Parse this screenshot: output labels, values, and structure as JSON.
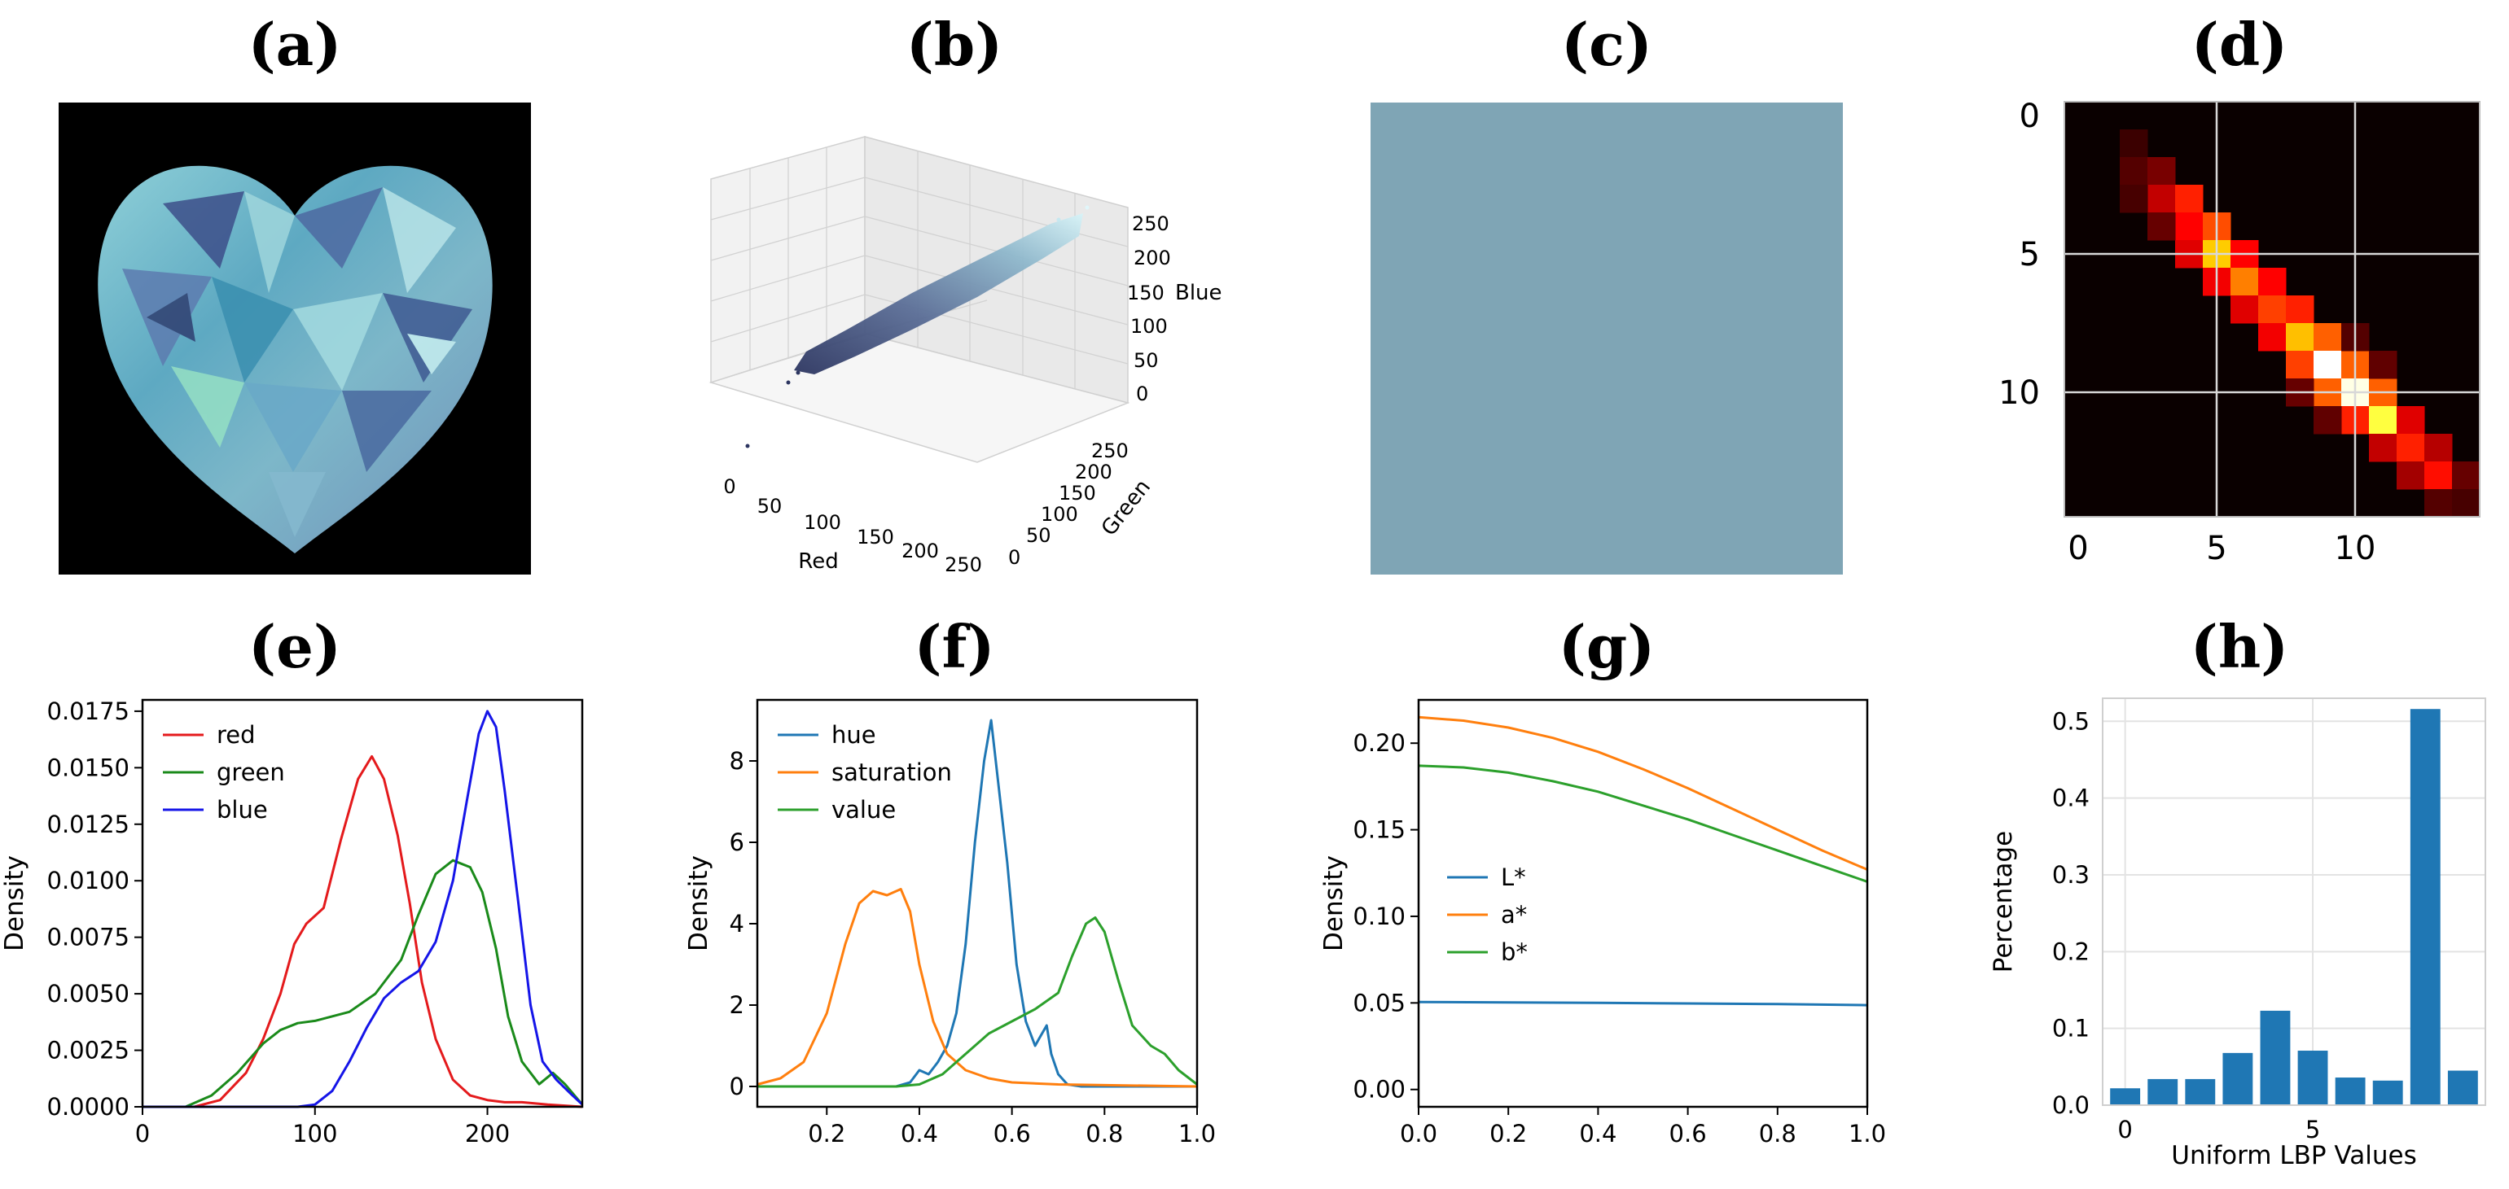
{
  "panel_labels": [
    "(a)",
    "(b)",
    "(c)",
    "(d)",
    "(e)",
    "(f)",
    "(g)",
    "(h)"
  ],
  "colors": {
    "red": "#e41a1c",
    "green": "#1a8a1a",
    "blue": "#1515e8",
    "mpl_blue": "#1f77b4",
    "mpl_orange": "#ff7f0e",
    "mpl_green": "#2ca02c",
    "dominant_color": "#7fa5b5",
    "image_bg": "#000000"
  },
  "chart_data": [
    {
      "id": "a",
      "type": "image",
      "description_hidden": true
    },
    {
      "id": "b",
      "type": "scatter3d",
      "xlabel": "Red",
      "ylabel": "Green",
      "zlabel": "Blue",
      "x_ticks": [
        "0",
        "50",
        "100",
        "150",
        "200",
        "250"
      ],
      "y_ticks": [
        "0",
        "50",
        "100",
        "150",
        "200",
        "250"
      ],
      "z_ticks": [
        "0",
        "50",
        "100",
        "150",
        "200",
        "250"
      ]
    },
    {
      "id": "c",
      "type": "swatch",
      "color": "#7fa5b5"
    },
    {
      "id": "d",
      "type": "heatmap",
      "x_ticks": [
        "0",
        "5",
        "10"
      ],
      "y_ticks": [
        "0",
        "5",
        "10"
      ],
      "size": 15,
      "diagonal": [
        {
          "r": 1,
          "c": 2,
          "v": 0.08
        },
        {
          "r": 2,
          "c": 2,
          "v": 0.12
        },
        {
          "r": 2,
          "c": 3,
          "v": 0.18
        },
        {
          "r": 3,
          "c": 3,
          "v": 0.3
        },
        {
          "r": 3,
          "c": 4,
          "v": 0.45
        },
        {
          "r": 4,
          "c": 4,
          "v": 0.4
        },
        {
          "r": 4,
          "c": 5,
          "v": 0.52
        },
        {
          "r": 5,
          "c": 4,
          "v": 0.35
        },
        {
          "r": 5,
          "c": 5,
          "v": 0.72
        },
        {
          "r": 5,
          "c": 6,
          "v": 0.4
        },
        {
          "r": 6,
          "c": 5,
          "v": 0.38
        },
        {
          "r": 6,
          "c": 6,
          "v": 0.6
        },
        {
          "r": 6,
          "c": 7,
          "v": 0.4
        },
        {
          "r": 7,
          "c": 6,
          "v": 0.35
        },
        {
          "r": 7,
          "c": 7,
          "v": 0.5
        },
        {
          "r": 7,
          "c": 8,
          "v": 0.45
        },
        {
          "r": 8,
          "c": 7,
          "v": 0.38
        },
        {
          "r": 8,
          "c": 8,
          "v": 0.7
        },
        {
          "r": 8,
          "c": 9,
          "v": 0.55
        },
        {
          "r": 9,
          "c": 8,
          "v": 0.5
        },
        {
          "r": 9,
          "c": 9,
          "v": 1.0
        },
        {
          "r": 9,
          "c": 10,
          "v": 0.55
        },
        {
          "r": 10,
          "c": 9,
          "v": 0.55
        },
        {
          "r": 10,
          "c": 10,
          "v": 0.98
        },
        {
          "r": 10,
          "c": 11,
          "v": 0.55
        },
        {
          "r": 11,
          "c": 10,
          "v": 0.45
        },
        {
          "r": 11,
          "c": 11,
          "v": 0.85
        },
        {
          "r": 11,
          "c": 12,
          "v": 0.35
        },
        {
          "r": 12,
          "c": 11,
          "v": 0.3
        },
        {
          "r": 12,
          "c": 12,
          "v": 0.45
        },
        {
          "r": 12,
          "c": 13,
          "v": 0.28
        },
        {
          "r": 13,
          "c": 12,
          "v": 0.25
        },
        {
          "r": 13,
          "c": 13,
          "v": 0.42
        },
        {
          "r": 13,
          "c": 14,
          "v": 0.15
        },
        {
          "r": 8,
          "c": 10,
          "v": 0.12
        },
        {
          "r": 10,
          "c": 8,
          "v": 0.15
        },
        {
          "r": 4,
          "c": 3,
          "v": 0.15
        },
        {
          "r": 3,
          "c": 2,
          "v": 0.1
        },
        {
          "r": 14,
          "c": 13,
          "v": 0.12
        },
        {
          "r": 14,
          "c": 14,
          "v": 0.1
        },
        {
          "r": 11,
          "c": 9,
          "v": 0.14
        },
        {
          "r": 9,
          "c": 11,
          "v": 0.14
        }
      ]
    },
    {
      "id": "e",
      "type": "line",
      "ylabel": "Density",
      "xlabel": "",
      "xlim": [
        0,
        255
      ],
      "ylim": [
        0,
        0.018
      ],
      "x_ticks": [
        "0",
        "100",
        "200"
      ],
      "x_tick_values": [
        0,
        100,
        200
      ],
      "y_ticks": [
        "0.0000",
        "0.0025",
        "0.0050",
        "0.0075",
        "0.0100",
        "0.0125",
        "0.0150",
        "0.0175"
      ],
      "y_tick_values": [
        0,
        0.0025,
        0.005,
        0.0075,
        0.01,
        0.0125,
        0.015,
        0.0175
      ],
      "legend": [
        "red",
        "green",
        "blue"
      ],
      "series": [
        {
          "name": "red",
          "color": "#e41a1c",
          "x": [
            0,
            30,
            45,
            60,
            70,
            80,
            88,
            95,
            105,
            115,
            125,
            133,
            140,
            148,
            155,
            162,
            170,
            180,
            190,
            200,
            210,
            220,
            235,
            255
          ],
          "y": [
            0,
            0,
            0.0003,
            0.0015,
            0.003,
            0.005,
            0.0072,
            0.0081,
            0.0088,
            0.0118,
            0.0145,
            0.0155,
            0.0145,
            0.012,
            0.009,
            0.0055,
            0.003,
            0.0012,
            0.0005,
            0.0003,
            0.0002,
            0.0002,
            0.0001,
            0
          ]
        },
        {
          "name": "green",
          "color": "#1a8a1a",
          "x": [
            0,
            25,
            40,
            55,
            70,
            80,
            90,
            100,
            120,
            135,
            150,
            160,
            170,
            180,
            190,
            197,
            205,
            212,
            220,
            230,
            238,
            245,
            255
          ],
          "y": [
            0,
            0,
            0.0005,
            0.0015,
            0.0028,
            0.0034,
            0.0037,
            0.0038,
            0.0042,
            0.005,
            0.0065,
            0.0085,
            0.0103,
            0.0109,
            0.0106,
            0.0095,
            0.007,
            0.004,
            0.002,
            0.001,
            0.0015,
            0.001,
            0.0001
          ]
        },
        {
          "name": "blue",
          "color": "#1515e8",
          "x": [
            0,
            90,
            100,
            110,
            120,
            130,
            140,
            150,
            160,
            170,
            180,
            188,
            195,
            200,
            205,
            210,
            218,
            225,
            232,
            240,
            248,
            255
          ],
          "y": [
            0,
            0,
            0.0001,
            0.0007,
            0.002,
            0.0035,
            0.0048,
            0.0055,
            0.006,
            0.0073,
            0.01,
            0.0135,
            0.0165,
            0.0175,
            0.0168,
            0.014,
            0.009,
            0.0045,
            0.002,
            0.0012,
            0.0006,
            0.0001
          ]
        }
      ]
    },
    {
      "id": "f",
      "type": "line",
      "ylabel": "Density",
      "xlabel": "",
      "xlim": [
        0.05,
        1.0
      ],
      "ylim": [
        -0.5,
        9.5
      ],
      "x_ticks": [
        "0.2",
        "0.4",
        "0.6",
        "0.8",
        "1.0"
      ],
      "x_tick_values": [
        0.2,
        0.4,
        0.6,
        0.8,
        1.0
      ],
      "y_ticks": [
        "0",
        "2",
        "4",
        "6",
        "8"
      ],
      "y_tick_values": [
        0,
        2,
        4,
        6,
        8
      ],
      "legend": [
        "hue",
        "saturation",
        "value"
      ],
      "series": [
        {
          "name": "hue",
          "color": "#1f77b4",
          "x": [
            0.05,
            0.35,
            0.38,
            0.4,
            0.42,
            0.44,
            0.46,
            0.48,
            0.5,
            0.52,
            0.54,
            0.555,
            0.57,
            0.59,
            0.61,
            0.63,
            0.65,
            0.66,
            0.675,
            0.685,
            0.7,
            0.72,
            0.75,
            1.0
          ],
          "y": [
            0,
            0,
            0.1,
            0.4,
            0.3,
            0.6,
            1.0,
            1.8,
            3.5,
            6.0,
            8.0,
            9.0,
            7.5,
            5.5,
            3.0,
            1.6,
            1.0,
            1.2,
            1.5,
            0.8,
            0.3,
            0.05,
            0,
            0
          ]
        },
        {
          "name": "saturation",
          "color": "#ff7f0e",
          "x": [
            0.05,
            0.1,
            0.15,
            0.2,
            0.24,
            0.27,
            0.3,
            0.33,
            0.36,
            0.38,
            0.4,
            0.43,
            0.46,
            0.5,
            0.55,
            0.6,
            0.7,
            1.0
          ],
          "y": [
            0.05,
            0.2,
            0.6,
            1.8,
            3.5,
            4.5,
            4.8,
            4.7,
            4.85,
            4.3,
            3.0,
            1.6,
            0.8,
            0.4,
            0.2,
            0.1,
            0.05,
            0
          ]
        },
        {
          "name": "value",
          "color": "#2ca02c",
          "x": [
            0.05,
            0.35,
            0.4,
            0.45,
            0.5,
            0.55,
            0.6,
            0.65,
            0.7,
            0.73,
            0.76,
            0.78,
            0.8,
            0.83,
            0.86,
            0.9,
            0.93,
            0.96,
            1.0
          ],
          "y": [
            0,
            0,
            0.05,
            0.3,
            0.8,
            1.3,
            1.6,
            1.9,
            2.3,
            3.2,
            4.0,
            4.15,
            3.8,
            2.6,
            1.5,
            1.0,
            0.8,
            0.4,
            0.05
          ]
        }
      ]
    },
    {
      "id": "g",
      "type": "line",
      "ylabel": "Density",
      "xlabel": "",
      "xlim": [
        0,
        1.0
      ],
      "ylim": [
        -0.01,
        0.225
      ],
      "x_ticks": [
        "0.0",
        "0.2",
        "0.4",
        "0.6",
        "0.8",
        "1.0"
      ],
      "x_tick_values": [
        0,
        0.2,
        0.4,
        0.6,
        0.8,
        1.0
      ],
      "y_ticks": [
        "0.00",
        "0.05",
        "0.10",
        "0.15",
        "0.20"
      ],
      "y_tick_values": [
        0,
        0.05,
        0.1,
        0.15,
        0.2
      ],
      "legend": [
        "L*",
        "a*",
        "b*"
      ],
      "series": [
        {
          "name": "L*",
          "color": "#1f77b4",
          "x": [
            0,
            0.2,
            0.4,
            0.6,
            0.8,
            1.0
          ],
          "y": [
            0.0505,
            0.0503,
            0.05,
            0.0497,
            0.0493,
            0.0487
          ]
        },
        {
          "name": "a*",
          "color": "#ff7f0e",
          "x": [
            0,
            0.1,
            0.2,
            0.3,
            0.4,
            0.5,
            0.6,
            0.7,
            0.8,
            0.9,
            1.0
          ],
          "y": [
            0.215,
            0.213,
            0.209,
            0.203,
            0.195,
            0.185,
            0.174,
            0.162,
            0.15,
            0.138,
            0.127
          ]
        },
        {
          "name": "b*",
          "color": "#2ca02c",
          "x": [
            0,
            0.1,
            0.2,
            0.3,
            0.4,
            0.5,
            0.6,
            0.7,
            0.8,
            0.9,
            1.0
          ],
          "y": [
            0.187,
            0.186,
            0.183,
            0.178,
            0.172,
            0.164,
            0.156,
            0.147,
            0.138,
            0.129,
            0.12
          ]
        }
      ]
    },
    {
      "id": "h",
      "type": "bar",
      "ylabel": "Percentage",
      "xlabel": "Uniform LBP Values",
      "categories": [
        0,
        1,
        2,
        3,
        4,
        5,
        6,
        7,
        8,
        9
      ],
      "values": [
        0.022,
        0.034,
        0.034,
        0.068,
        0.123,
        0.071,
        0.036,
        0.032,
        0.516,
        0.045
      ],
      "color": "#1f77b4",
      "xlim": [
        -0.6,
        9.6
      ],
      "ylim": [
        0,
        0.53
      ],
      "x_ticks": [
        "0",
        "5"
      ],
      "x_tick_values": [
        0,
        5
      ],
      "y_ticks": [
        "0.0",
        "0.1",
        "0.2",
        "0.3",
        "0.4",
        "0.5"
      ],
      "y_tick_values": [
        0,
        0.1,
        0.2,
        0.3,
        0.4,
        0.5
      ]
    }
  ]
}
